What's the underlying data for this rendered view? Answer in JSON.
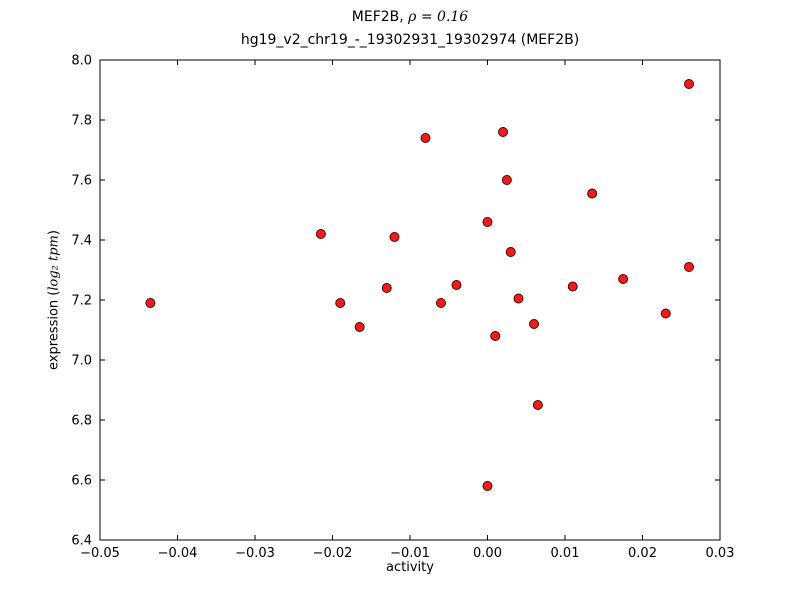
{
  "chart_data": {
    "type": "scatter",
    "title": {
      "gene": "MEF2B, ",
      "rho": "ρ = 0.16",
      "subtitle": "hg19_v2_chr19_-_19302931_19302974 (MEF2B)"
    },
    "xlabel": "activity",
    "ylabel_parts": {
      "prefix": "expression (",
      "math": "log₂ tpm",
      "suffix": ")"
    },
    "xlim": [
      -0.05,
      0.03
    ],
    "ylim": [
      6.4,
      8.0
    ],
    "xticks": [
      -0.05,
      -0.04,
      -0.03,
      -0.02,
      -0.01,
      0.0,
      0.01,
      0.02,
      0.03
    ],
    "xtick_labels": [
      "−0.05",
      "−0.04",
      "−0.03",
      "−0.02",
      "−0.01",
      "0.00",
      "0.01",
      "0.02",
      "0.03"
    ],
    "yticks": [
      6.4,
      6.6,
      6.8,
      7.0,
      7.2,
      7.4,
      7.6,
      7.8,
      8.0
    ],
    "ytick_labels": [
      "6.4",
      "6.6",
      "6.8",
      "7.0",
      "7.2",
      "7.4",
      "7.6",
      "7.8",
      "8.0"
    ],
    "grid": false,
    "marker": {
      "fill": "#ee1c1c",
      "edge": "#550000"
    },
    "points": [
      [
        -0.0435,
        7.19
      ],
      [
        -0.0215,
        7.42
      ],
      [
        -0.019,
        7.19
      ],
      [
        -0.0165,
        7.11
      ],
      [
        -0.013,
        7.24
      ],
      [
        -0.012,
        7.41
      ],
      [
        -0.008,
        7.74
      ],
      [
        -0.006,
        7.19
      ],
      [
        -0.004,
        7.25
      ],
      [
        0.0,
        7.46
      ],
      [
        0.0,
        6.58
      ],
      [
        0.001,
        7.08
      ],
      [
        0.002,
        7.76
      ],
      [
        0.0025,
        7.6
      ],
      [
        0.003,
        7.36
      ],
      [
        0.004,
        7.205
      ],
      [
        0.006,
        7.12
      ],
      [
        0.0065,
        6.85
      ],
      [
        0.011,
        7.245
      ],
      [
        0.0135,
        7.555
      ],
      [
        0.0175,
        7.27
      ],
      [
        0.023,
        7.155
      ],
      [
        0.026,
        7.92
      ],
      [
        0.026,
        7.31
      ]
    ]
  }
}
